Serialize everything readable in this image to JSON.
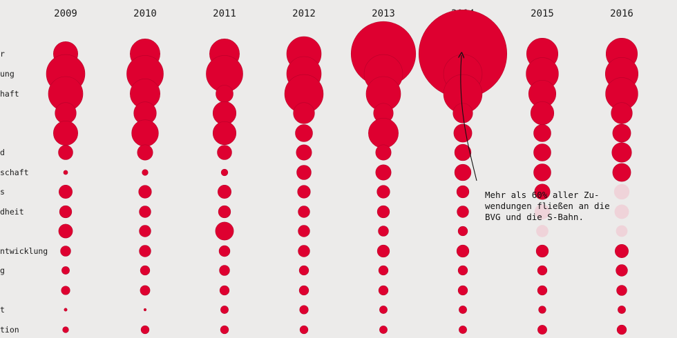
{
  "colors": {
    "bubble": "#de0030",
    "bubble_stroke": "#b8002a",
    "bubble_faded": "#efd3d9",
    "background": "#ecebea",
    "text": "#1a1a1a"
  },
  "annotation": {
    "lines": [
      "Mehr als 60% aller Zu-",
      "wendungen fließen an die",
      "BVG und die S-Bahn."
    ]
  },
  "chart_data": {
    "type": "bubble-matrix",
    "years": [
      "2009",
      "2010",
      "2011",
      "2012",
      "2013",
      "2014",
      "2015",
      "2016"
    ],
    "row_labels": [
      "r",
      "ung",
      "haft",
      "",
      "",
      "d",
      "schaft",
      "s",
      "dheit",
      "",
      "ntwicklung",
      "g",
      "",
      "t",
      "tion"
    ],
    "values": [
      [
        2,
        3,
        3,
        4,
        14,
        26,
        3.3,
        3.3
      ],
      [
        5,
        4.5,
        4.5,
        4,
        5,
        5,
        3.5,
        3.6
      ],
      [
        4,
        3,
        1,
        5,
        4,
        5,
        2.5,
        3.5
      ],
      [
        1.5,
        1.7,
        1.8,
        1.5,
        1.3,
        1.3,
        1.8,
        1.5
      ],
      [
        2,
        2.4,
        1.8,
        1,
        3,
        1.1,
        1,
        1.1
      ],
      [
        0.7,
        0.8,
        0.7,
        0.8,
        0.8,
        0.9,
        1,
        1.3
      ],
      [
        0.06,
        0.12,
        0.15,
        0.7,
        0.8,
        0.9,
        1,
        1.1
      ],
      [
        0.6,
        0.55,
        0.6,
        0.55,
        0.55,
        0.5,
        0.8,
        0.8
      ],
      [
        0.5,
        0.45,
        0.5,
        0.45,
        0.5,
        0.45,
        0.8,
        0.7
      ],
      [
        0.65,
        0.45,
        1.1,
        0.45,
        0.35,
        0.3,
        0.5,
        0.45
      ],
      [
        0.35,
        0.45,
        0.4,
        0.45,
        0.5,
        0.5,
        0.5,
        0.6
      ],
      [
        0.2,
        0.3,
        0.35,
        0.3,
        0.3,
        0.3,
        0.3,
        0.45
      ],
      [
        0.25,
        0.32,
        0.3,
        0.3,
        0.3,
        0.3,
        0.3,
        0.35
      ],
      [
        0.03,
        0.02,
        0.2,
        0.25,
        0.2,
        0.2,
        0.18,
        0.2
      ],
      [
        0.12,
        0.22,
        0.22,
        0.22,
        0.2,
        0.2,
        0.28,
        0.3
      ]
    ],
    "faded_cells": [
      [
        7,
        7
      ],
      [
        8,
        6
      ],
      [
        8,
        7
      ],
      [
        9,
        6
      ],
      [
        9,
        7
      ]
    ],
    "annotation_target": [
      0,
      5
    ]
  }
}
